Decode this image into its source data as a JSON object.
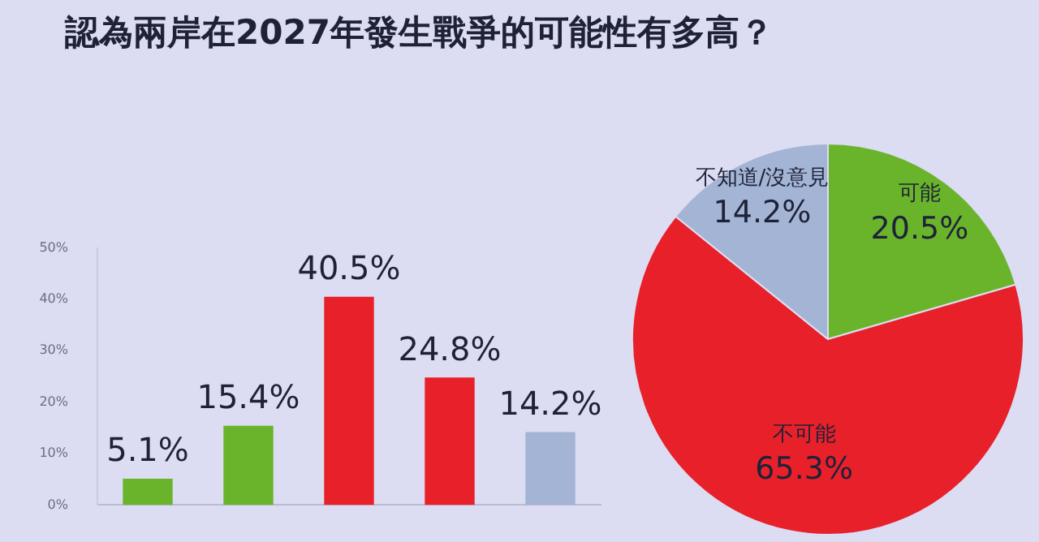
{
  "chart_data": [
    {
      "type": "bar",
      "title": "認為兩岸在2027年發生戰爭的可能性有多高？",
      "categories": [
        null,
        null,
        null,
        null,
        null
      ],
      "values": [
        5.1,
        15.4,
        40.5,
        24.8,
        14.2
      ],
      "colors": [
        "#6ab42c",
        "#6ab42c",
        "#e8202a",
        "#e8202a",
        "#a4b4d4"
      ],
      "value_labels": [
        "5.1%",
        "15.4%",
        "40.5%",
        "24.8%",
        "14.2%"
      ],
      "ylim": [
        0,
        50
      ],
      "yticks": [
        {
          "value": 0,
          "label": "0%"
        },
        {
          "value": 10,
          "label": "10%"
        },
        {
          "value": 20,
          "label": "20%"
        },
        {
          "value": 30,
          "label": "30%"
        },
        {
          "value": 40,
          "label": "40%"
        },
        {
          "value": 50,
          "label": "50%"
        }
      ],
      "grid": false
    },
    {
      "type": "pie",
      "categories": [
        "可能",
        "不可能",
        "不知道/沒意見"
      ],
      "values": [
        20.5,
        65.3,
        14.2
      ],
      "colors": [
        "#6ab42c",
        "#e8202a",
        "#a4b4d4"
      ],
      "value_labels": [
        "20.5%",
        "65.3%",
        "14.2%"
      ]
    }
  ]
}
